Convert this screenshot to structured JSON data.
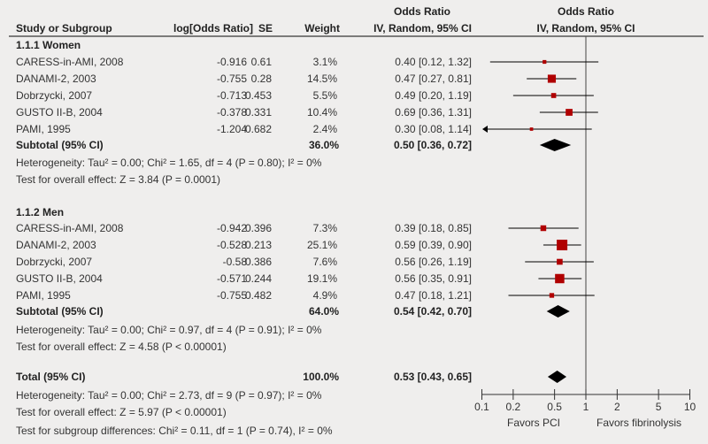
{
  "chart_data": {
    "type": "forest",
    "headers": {
      "study": "Study or Subgroup",
      "log_or": "log[Odds Ratio]",
      "se": "SE",
      "weight": "Weight",
      "or_title": "Odds Ratio",
      "or_method": "IV, Random, 95% CI",
      "plot_title": "Odds Ratio",
      "plot_method": "IV, Random, 95% CI"
    },
    "groups": [
      {
        "title": "1.1.1 Women",
        "studies": [
          {
            "name": "CARESS-in-AMI, 2008",
            "log_or": "-0.916",
            "se": "0.61",
            "weight": "3.1%",
            "w": 3.1,
            "ci_text": "0.40 [0.12, 1.32]",
            "or": 0.4,
            "lo": 0.12,
            "hi": 1.32
          },
          {
            "name": "DANAMI-2, 2003",
            "log_or": "-0.755",
            "se": "0.28",
            "weight": "14.5%",
            "w": 14.5,
            "ci_text": "0.47 [0.27, 0.81]",
            "or": 0.47,
            "lo": 0.27,
            "hi": 0.81
          },
          {
            "name": "Dobrzycki, 2007",
            "log_or": "-0.713",
            "se": "0.453",
            "weight": "5.5%",
            "w": 5.5,
            "ci_text": "0.49 [0.20, 1.19]",
            "or": 0.49,
            "lo": 0.2,
            "hi": 1.19
          },
          {
            "name": "GUSTO II-B, 2004",
            "log_or": "-0.378",
            "se": "0.331",
            "weight": "10.4%",
            "w": 10.4,
            "ci_text": "0.69 [0.36, 1.31]",
            "or": 0.69,
            "lo": 0.36,
            "hi": 1.31
          },
          {
            "name": "PAMI, 1995",
            "log_or": "-1.204",
            "se": "0.682",
            "weight": "2.4%",
            "w": 2.4,
            "ci_text": "0.30 [0.08, 1.14]",
            "or": 0.3,
            "lo": 0.08,
            "hi": 1.14
          }
        ],
        "subtotal": {
          "label": "Subtotal (95% CI)",
          "weight": "36.0%",
          "ci_text": "0.50 [0.36, 0.72]",
          "or": 0.5,
          "lo": 0.36,
          "hi": 0.72
        },
        "heterogeneity": "Heterogeneity: Tau² = 0.00; Chi² = 1.65, df = 4 (P = 0.80); I² = 0%",
        "overall_effect": "Test for overall effect: Z = 3.84 (P = 0.0001)"
      },
      {
        "title": "1.1.2 Men",
        "studies": [
          {
            "name": "CARESS-in-AMI, 2008",
            "log_or": "-0.942",
            "se": "0.396",
            "weight": "7.3%",
            "w": 7.3,
            "ci_text": "0.39 [0.18, 0.85]",
            "or": 0.39,
            "lo": 0.18,
            "hi": 0.85
          },
          {
            "name": "DANAMI-2, 2003",
            "log_or": "-0.528",
            "se": "0.213",
            "weight": "25.1%",
            "w": 25.1,
            "ci_text": "0.59 [0.39, 0.90]",
            "or": 0.59,
            "lo": 0.39,
            "hi": 0.9
          },
          {
            "name": "Dobrzycki, 2007",
            "log_or": "-0.58",
            "se": "0.386",
            "weight": "7.6%",
            "w": 7.6,
            "ci_text": "0.56 [0.26, 1.19]",
            "or": 0.56,
            "lo": 0.26,
            "hi": 1.19
          },
          {
            "name": "GUSTO II-B, 2004",
            "log_or": "-0.571",
            "se": "0.244",
            "weight": "19.1%",
            "w": 19.1,
            "ci_text": "0.56 [0.35, 0.91]",
            "or": 0.56,
            "lo": 0.35,
            "hi": 0.91
          },
          {
            "name": "PAMI, 1995",
            "log_or": "-0.755",
            "se": "0.482",
            "weight": "4.9%",
            "w": 4.9,
            "ci_text": "0.47 [0.18, 1.21]",
            "or": 0.47,
            "lo": 0.18,
            "hi": 1.21
          }
        ],
        "subtotal": {
          "label": "Subtotal (95% CI)",
          "weight": "64.0%",
          "ci_text": "0.54 [0.42, 0.70]",
          "or": 0.54,
          "lo": 0.42,
          "hi": 0.7
        },
        "heterogeneity": "Heterogeneity: Tau² = 0.00; Chi² = 0.97, df = 4 (P = 0.91); I² = 0%",
        "overall_effect": "Test for overall effect: Z = 4.58 (P < 0.00001)"
      }
    ],
    "total": {
      "label": "Total (95% CI)",
      "weight": "100.0%",
      "ci_text": "0.53 [0.43, 0.65]",
      "or": 0.53,
      "lo": 0.43,
      "hi": 0.65
    },
    "total_heterogeneity": "Heterogeneity: Tau² = 0.00; Chi² = 2.73, df = 9 (P = 0.97); I² = 0%",
    "total_overall_effect": "Test for overall effect: Z = 5.97 (P < 0.00001)",
    "subgroup_differences": "Test for subgroup differences: Chi² = 0.11, df = 1 (P = 0.74), I² = 0%",
    "x_axis": {
      "scale": "log",
      "range": [
        0.1,
        10
      ],
      "ticks": [
        0.1,
        0.2,
        0.5,
        1,
        2,
        5,
        10
      ],
      "tick_labels": [
        "0.1",
        "0.2",
        "0.5",
        "1",
        "2",
        "5",
        "10"
      ]
    },
    "favors_left": "Favors PCI",
    "favors_right": "Favors fibrinolysis",
    "colors": {
      "study_marker": "#b00000",
      "diamond": "#000000",
      "ci_line": "#000000"
    }
  }
}
